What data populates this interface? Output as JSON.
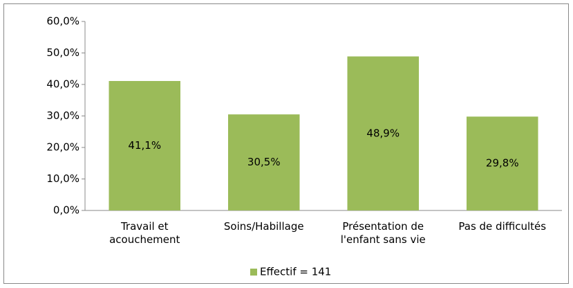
{
  "chart_data": {
    "type": "bar",
    "categories": [
      "Travail et\nacouchement",
      "Soins/Habillage",
      "Présentation de\nl'enfant sans vie",
      "Pas de difficultés"
    ],
    "series": [
      {
        "name": "Effectif = 141",
        "color": "#9bbb59",
        "values": [
          41.1,
          30.5,
          48.9,
          29.8
        ],
        "value_labels": [
          "41,1%",
          "30,5%",
          "48,9%",
          "29,8%"
        ]
      }
    ],
    "ylim": [
      0,
      60
    ],
    "yticks": [
      {
        "value": 0,
        "label": "0,0%"
      },
      {
        "value": 10,
        "label": "10,0%"
      },
      {
        "value": 20,
        "label": "20,0%"
      },
      {
        "value": 30,
        "label": "30,0%"
      },
      {
        "value": 40,
        "label": "40,0%"
      },
      {
        "value": 50,
        "label": "50,0%"
      },
      {
        "value": 60,
        "label": "60,0%"
      }
    ],
    "grid": false,
    "legend": "bottom"
  }
}
